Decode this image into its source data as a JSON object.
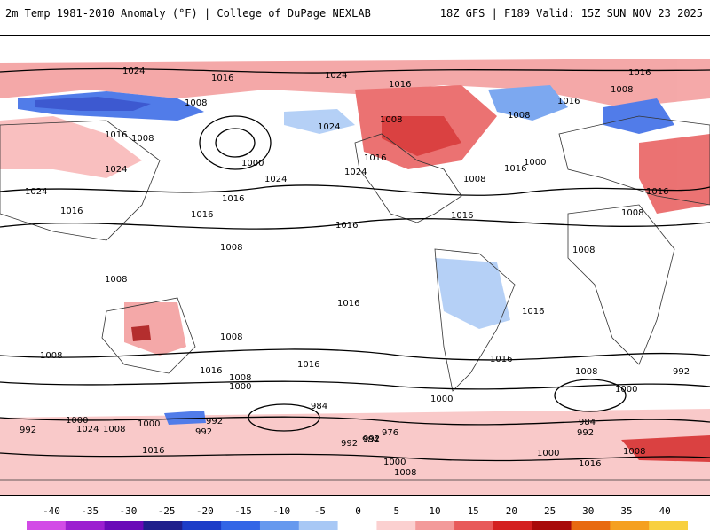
{
  "header": {
    "title_left": "2m Temp 1981-2010 Anomaly (°F) | College of DuPage NEXLAB",
    "title_right": "18Z GFS | F189 Valid: 15Z SUN NOV 23 2025"
  },
  "isobar_labels": {
    "l1": "1024",
    "l2": "1016",
    "l3": "1008",
    "l4": "1016",
    "l5": "1008",
    "l6": "1024",
    "l7": "1016",
    "l8": "1024",
    "l9": "1008",
    "l10": "1000",
    "l11": "1016",
    "l12": "1016",
    "l13": "1008",
    "l14": "1016",
    "l15": "1024",
    "l16": "1024",
    "l17": "1016",
    "l18": "1024",
    "l19": "1008",
    "l20": "1000",
    "l21": "1016",
    "l22": "1016",
    "l23": "1008",
    "l24": "1024",
    "l25": "1016",
    "l26": "1016",
    "l27": "1008",
    "l28": "1008",
    "l29": "1016",
    "l30": "1016",
    "l31": "1008",
    "l32": "1008",
    "l33": "1016",
    "l34": "1016",
    "l35": "1016",
    "l36": "1008",
    "l37": "1016",
    "l38": "1008",
    "l39": "1000",
    "l40": "1008",
    "l41": "1000",
    "l42": "984",
    "l43": "992",
    "l44": "1000",
    "l45": "992",
    "l46": "1024",
    "l47": "1008",
    "l48": "992",
    "l49": "992",
    "l50": "992",
    "l51": "984",
    "l52": "976",
    "l53": "1016",
    "l54": "1000",
    "l55": "1008",
    "l56": "1000",
    "l57": "984",
    "l58": "992",
    "l59": "1000",
    "l60": "1016",
    "l61": "1008",
    "l62": "992",
    "l63": "1016",
    "l64": "1000",
    "l65": "1008"
  },
  "legend": {
    "ticks": [
      "-40",
      "-35",
      "-30",
      "-25",
      "-20",
      "-15",
      "-10",
      "-5",
      "0",
      "5",
      "10",
      "15",
      "20",
      "25",
      "30",
      "35",
      "40"
    ],
    "colors": [
      "#d24be6",
      "#9c1fd0",
      "#6a0ab8",
      "#1f1f8c",
      "#1c3dc8",
      "#3366e6",
      "#6699ee",
      "#a8c8f5",
      "#ffffff",
      "#fbd0d0",
      "#f39a9a",
      "#e85a5a",
      "#d42020",
      "#a80a0a",
      "#e86a10",
      "#f5a020",
      "#f8d040"
    ]
  }
}
